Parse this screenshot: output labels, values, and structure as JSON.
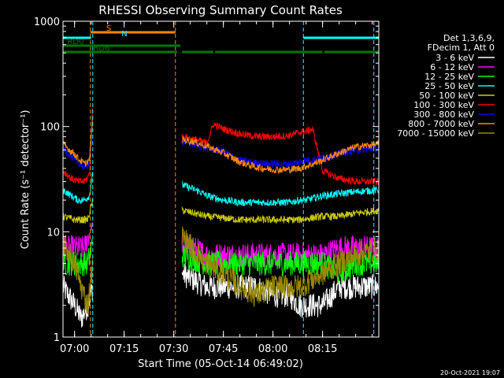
{
  "chart_data": {
    "type": "line",
    "title": "RHESSI Observing Summary Count Rates",
    "xlabel": "Start Time (05-Oct-14 06:49:02)",
    "ylabel": "Count Rate (s⁻¹ detector⁻¹)",
    "yscale": "log",
    "ylim": [
      1,
      1000
    ],
    "xlim_minutes": [
      -3.5,
      92
    ],
    "xticks": [
      {
        "m": 0,
        "label": "07:00"
      },
      {
        "m": 15,
        "label": "07:15"
      },
      {
        "m": 30,
        "label": "07:30"
      },
      {
        "m": 45,
        "label": "07:45"
      },
      {
        "m": 60,
        "label": "08:00"
      },
      {
        "m": 75,
        "label": "08:15"
      }
    ],
    "yticks": [
      {
        "v": 1,
        "label": "1"
      },
      {
        "v": 10,
        "label": "10"
      },
      {
        "v": 100,
        "label": "100"
      },
      {
        "v": 1000,
        "label": "1000"
      }
    ],
    "legend": {
      "placement": "right",
      "header": [
        "Det 1,3,6,9,",
        "FDecim 1, Att 0"
      ],
      "items": [
        {
          "label": "3 - 6 keV",
          "color": "#ffffff"
        },
        {
          "label": "6 - 12 keV",
          "color": "#ff00ff"
        },
        {
          "label": "12 - 25 keV",
          "color": "#00ff00"
        },
        {
          "label": "25 - 50 keV",
          "color": "#00ffff"
        },
        {
          "label": "50 - 100 keV",
          "color": "#cccc00"
        },
        {
          "label": "100 - 300 keV",
          "color": "#ff0000"
        },
        {
          "label": "300 - 800 keV",
          "color": "#0000ff"
        },
        {
          "label": "800 - 7000 keV",
          "color": "#ff8800"
        },
        {
          "label": "7000 - 15000 keV",
          "color": "#998800"
        }
      ]
    },
    "intervals": [
      {
        "start": -3.5,
        "end": 5.5
      },
      {
        "start": 32.5,
        "end": 92
      }
    ],
    "series": [
      {
        "name": "3 - 6 keV",
        "color": "#ffffff",
        "points": [
          [
            -3.5,
            3
          ],
          [
            0,
            2
          ],
          [
            2,
            1.5
          ],
          [
            4,
            2
          ],
          [
            5.5,
            3
          ],
          [
            32.5,
            4
          ],
          [
            40,
            3
          ],
          [
            45,
            3
          ],
          [
            50,
            3
          ],
          [
            55,
            3
          ],
          [
            60,
            2.5
          ],
          [
            65,
            2.5
          ],
          [
            68,
            2
          ],
          [
            75,
            2
          ],
          [
            80,
            3
          ],
          [
            88,
            3
          ],
          [
            92,
            3
          ]
        ]
      },
      {
        "name": "6 - 12 keV",
        "color": "#ff00ff",
        "points": [
          [
            -3.5,
            7
          ],
          [
            0,
            7
          ],
          [
            3,
            7
          ],
          [
            5.5,
            12
          ],
          [
            32.5,
            8
          ],
          [
            40,
            6
          ],
          [
            50,
            6
          ],
          [
            60,
            6
          ],
          [
            68,
            6
          ],
          [
            75,
            6
          ],
          [
            80,
            7
          ],
          [
            85,
            7
          ],
          [
            92,
            7
          ]
        ]
      },
      {
        "name": "12 - 25 keV",
        "color": "#00ff00",
        "points": [
          [
            -3.5,
            5
          ],
          [
            0,
            5
          ],
          [
            2,
            5
          ],
          [
            4,
            5
          ],
          [
            5.5,
            8
          ],
          [
            32.5,
            6
          ],
          [
            40,
            5
          ],
          [
            50,
            5
          ],
          [
            60,
            5
          ],
          [
            68,
            5
          ],
          [
            75,
            5
          ],
          [
            80,
            4
          ],
          [
            85,
            5
          ],
          [
            92,
            5
          ]
        ]
      },
      {
        "name": "25 - 50 keV",
        "color": "#00ffff",
        "points": [
          [
            -3.5,
            25
          ],
          [
            -1,
            22
          ],
          [
            1,
            20
          ],
          [
            3,
            20
          ],
          [
            4.5,
            22
          ],
          [
            5.5,
            38
          ],
          [
            32.5,
            28
          ],
          [
            38,
            24
          ],
          [
            40,
            22
          ],
          [
            45,
            20
          ],
          [
            50,
            19
          ],
          [
            55,
            19
          ],
          [
            60,
            19
          ],
          [
            65,
            19
          ],
          [
            68,
            20
          ],
          [
            70,
            20
          ],
          [
            75,
            22
          ],
          [
            80,
            23
          ],
          [
            85,
            24
          ],
          [
            92,
            25
          ]
        ]
      },
      {
        "name": "50 - 100 keV",
        "color": "#cccc00",
        "points": [
          [
            -3.5,
            14
          ],
          [
            0,
            13
          ],
          [
            2,
            13
          ],
          [
            4,
            13
          ],
          [
            5.5,
            20
          ],
          [
            32.5,
            16
          ],
          [
            40,
            14
          ],
          [
            50,
            13
          ],
          [
            60,
            13
          ],
          [
            68,
            13
          ],
          [
            75,
            14
          ],
          [
            80,
            14
          ],
          [
            85,
            15
          ],
          [
            92,
            16
          ]
        ]
      },
      {
        "name": "100 - 300 keV",
        "color": "#ff0000",
        "points": [
          [
            -3.5,
            38
          ],
          [
            -1,
            32
          ],
          [
            1,
            30
          ],
          [
            3,
            30
          ],
          [
            4.5,
            35
          ],
          [
            5.5,
            170
          ],
          [
            32.5,
            80
          ],
          [
            36,
            76
          ],
          [
            40,
            70
          ],
          [
            42,
            105
          ],
          [
            45,
            95
          ],
          [
            50,
            85
          ],
          [
            55,
            80
          ],
          [
            60,
            80
          ],
          [
            65,
            82
          ],
          [
            68,
            88
          ],
          [
            70,
            90
          ],
          [
            72,
            95
          ],
          [
            75,
            38
          ],
          [
            80,
            32
          ],
          [
            85,
            30
          ],
          [
            92,
            30
          ]
        ]
      },
      {
        "name": "300 - 800 keV",
        "color": "#0000ff",
        "points": [
          [
            -3.5,
            62
          ],
          [
            -1,
            52
          ],
          [
            0,
            48
          ],
          [
            1,
            46
          ],
          [
            3,
            40
          ],
          [
            4.5,
            45
          ],
          [
            5.5,
            90
          ],
          [
            32.5,
            72
          ],
          [
            36,
            68
          ],
          [
            40,
            62
          ],
          [
            45,
            58
          ],
          [
            50,
            48
          ],
          [
            55,
            45
          ],
          [
            60,
            44
          ],
          [
            65,
            44
          ],
          [
            68,
            46
          ],
          [
            70,
            48
          ],
          [
            72,
            48
          ],
          [
            75,
            50
          ],
          [
            80,
            55
          ],
          [
            85,
            60
          ],
          [
            92,
            62
          ]
        ]
      },
      {
        "name": "800 - 7000 keV",
        "color": "#ff8800",
        "points": [
          [
            -3.5,
            68
          ],
          [
            -1,
            58
          ],
          [
            0,
            55
          ],
          [
            1,
            50
          ],
          [
            3,
            44
          ],
          [
            4.5,
            48
          ],
          [
            5.5,
            120
          ],
          [
            32.5,
            75
          ],
          [
            36,
            72
          ],
          [
            40,
            65
          ],
          [
            45,
            56
          ],
          [
            50,
            46
          ],
          [
            55,
            41
          ],
          [
            60,
            39
          ],
          [
            65,
            39
          ],
          [
            68,
            40
          ],
          [
            70,
            42
          ],
          [
            72,
            44
          ],
          [
            75,
            48
          ],
          [
            80,
            56
          ],
          [
            85,
            64
          ],
          [
            92,
            68
          ]
        ]
      },
      {
        "name": "7000 - 15000 keV",
        "color": "#998800",
        "points": [
          [
            -3.5,
            8
          ],
          [
            0,
            5
          ],
          [
            2,
            3
          ],
          [
            4,
            2
          ],
          [
            5.5,
            5
          ],
          [
            32.5,
            9
          ],
          [
            40,
            5
          ],
          [
            45,
            4
          ],
          [
            50,
            3
          ],
          [
            55,
            2.5
          ],
          [
            60,
            3
          ],
          [
            65,
            3
          ],
          [
            68,
            3
          ],
          [
            75,
            4
          ],
          [
            80,
            5
          ],
          [
            85,
            6
          ],
          [
            92,
            7
          ]
        ]
      }
    ],
    "vlines": [
      {
        "m": 4.8,
        "color": "#ff8800"
      },
      {
        "m": 5.5,
        "color": "#00ffff"
      },
      {
        "m": 30.5,
        "color": "#ff8800"
      },
      {
        "m": 69.2,
        "color": "#00ffff"
      },
      {
        "m": 90.5,
        "color": "#00ffff"
      }
    ],
    "flag_bars": [
      {
        "label": "S",
        "color": "#ff8800",
        "segments": [
          [
            4.8,
            30.5
          ]
        ]
      },
      {
        "label": "N",
        "color": "#00ffff",
        "segments": [
          [
            -3.5,
            5.0
          ],
          [
            69.2,
            92
          ]
        ]
      },
      {
        "label": "RD0",
        "color": "#007700",
        "segments": [
          [
            -3.5,
            32
          ]
        ]
      },
      {
        "label": "RD6",
        "color": "#007700",
        "segments": [
          [
            -3.5,
            0.5
          ],
          [
            0.5,
            31
          ],
          [
            32.5,
            42
          ],
          [
            42.5,
            75
          ],
          [
            75.5,
            92
          ]
        ]
      }
    ]
  },
  "footer": {
    "timestamp": "20-Oct-2021 19:07"
  }
}
